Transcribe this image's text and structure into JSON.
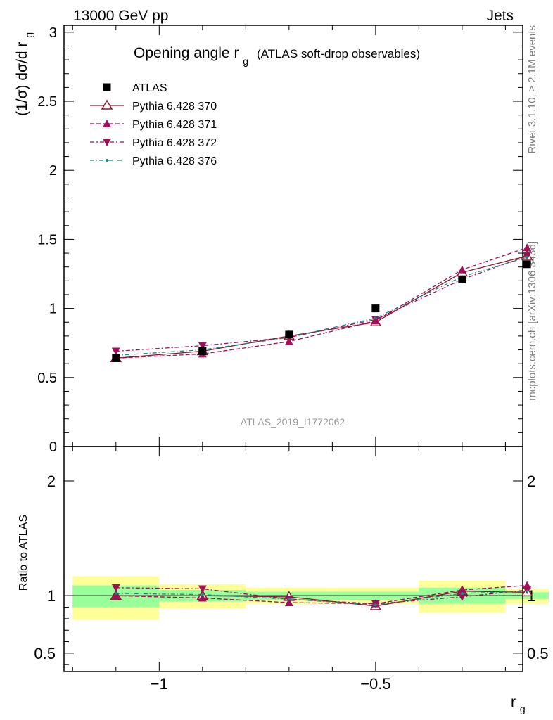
{
  "header": {
    "left": "13000 GeV pp",
    "right": "Jets"
  },
  "title": {
    "main": "Opening angle r",
    "sub": "g",
    "suffix": "(ATLAS soft-drop observables)"
  },
  "watermark": "ATLAS_2019_I1772062",
  "side_labels": {
    "rivet": "Rivet 3.1.10, ≥ 2.1M events",
    "mcplots": "mcplots.cern.ch [arXiv:1306.3436]"
  },
  "colors": {
    "data": "#000000",
    "p370": "#8b1a2b",
    "p371": "#a0105a",
    "p372": "#a0105a",
    "p376": "#1a8a80",
    "band_inner": "#99ff99",
    "band_outer": "#ffff99"
  },
  "chart_data": [
    {
      "type": "line",
      "ylabel": "(1/σ) dσ/d r",
      "ylabel_sub": "g",
      "xlim": [
        -1.22,
        -0.16
      ],
      "ylim": [
        0,
        3.05
      ],
      "x_ticks": [
        -1,
        -0.5
      ],
      "y_ticks": [
        {
          "v": 0.5,
          "label": "0.5"
        },
        {
          "v": 1,
          "label": "1"
        },
        {
          "v": 1.5,
          "label": "1.5"
        },
        {
          "v": 2,
          "label": "2"
        },
        {
          "v": 2.5,
          "label": "2.5"
        },
        {
          "v": 3,
          "label": "3"
        },
        {
          "v": 0,
          "label": "0"
        }
      ],
      "legend": {
        "placement": "top-left",
        "entries": [
          {
            "name": "ATLAS",
            "key": "data"
          },
          {
            "name": "Pythia 6.428 370",
            "key": "p370"
          },
          {
            "name": "Pythia 6.428 371",
            "key": "p371"
          },
          {
            "name": "Pythia 6.428 372",
            "key": "p372"
          },
          {
            "name": "Pythia 6.428 376",
            "key": "p376"
          }
        ]
      },
      "x": [
        -1.1,
        -0.9,
        -0.7,
        -0.5,
        -0.3,
        -0.15
      ],
      "series": [
        {
          "name": "ATLAS",
          "key": "data",
          "values": [
            0.64,
            0.69,
            0.81,
            1.0,
            1.21,
            1.32
          ]
        },
        {
          "name": "Pythia 6.428 370",
          "key": "p370",
          "values": [
            0.64,
            0.69,
            0.8,
            0.9,
            1.26,
            1.38
          ]
        },
        {
          "name": "Pythia 6.428 371",
          "key": "p371",
          "values": [
            0.64,
            0.67,
            0.76,
            0.91,
            1.28,
            1.44
          ]
        },
        {
          "name": "Pythia 6.428 372",
          "key": "p372",
          "values": [
            0.69,
            0.73,
            0.79,
            0.92,
            1.21,
            1.38
          ]
        },
        {
          "name": "Pythia 6.428 376",
          "key": "p376",
          "values": [
            0.66,
            0.7,
            0.79,
            0.93,
            1.23,
            1.37
          ]
        }
      ]
    },
    {
      "type": "line",
      "ylabel": "Ratio to ATLAS",
      "xlabel": "r",
      "xlabel_sub": "g",
      "xlim": [
        -1.22,
        -0.16
      ],
      "ylim": [
        0.34,
        2.3
      ],
      "x_ticks": [
        {
          "v": -1,
          "label": "−1"
        },
        {
          "v": -0.5,
          "label": "−0.5"
        }
      ],
      "y_ticks": [
        {
          "v": 0.5,
          "label": "0.5"
        },
        {
          "v": 1,
          "label": "1"
        },
        {
          "v": 2,
          "label": "2"
        }
      ],
      "bands": [
        {
          "x0": -1.2,
          "x1": -1.0,
          "inner": [
            0.9,
            1.09
          ],
          "outer": [
            0.79,
            1.17
          ]
        },
        {
          "x0": -1.0,
          "x1": -0.8,
          "inner": [
            0.95,
            1.05
          ],
          "outer": [
            0.89,
            1.1
          ]
        },
        {
          "x0": -0.8,
          "x1": -0.6,
          "inner": [
            0.965,
            1.035
          ],
          "outer": [
            0.93,
            1.07
          ]
        },
        {
          "x0": -0.6,
          "x1": -0.4,
          "inner": [
            0.965,
            1.035
          ],
          "outer": [
            0.93,
            1.07
          ]
        },
        {
          "x0": -0.4,
          "x1": -0.2,
          "inner": [
            0.93,
            1.07
          ],
          "outer": [
            0.85,
            1.13
          ]
        },
        {
          "x0": -0.2,
          "x1": -0.1,
          "inner": [
            0.97,
            1.03
          ],
          "outer": [
            0.93,
            1.06
          ]
        }
      ],
      "x": [
        -1.1,
        -0.9,
        -0.7,
        -0.5,
        -0.3,
        -0.15
      ],
      "series": [
        {
          "name": "Pythia 6.428 370",
          "key": "p370",
          "values": [
            1.0,
            1.0,
            0.99,
            0.91,
            1.04,
            1.03
          ]
        },
        {
          "name": "Pythia 6.428 371",
          "key": "p371",
          "values": [
            1.0,
            0.98,
            0.94,
            0.93,
            1.05,
            1.09
          ]
        },
        {
          "name": "Pythia 6.428 372",
          "key": "p372",
          "values": [
            1.07,
            1.06,
            0.97,
            0.93,
            0.99,
            1.05
          ]
        },
        {
          "name": "Pythia 6.428 376",
          "key": "p376",
          "values": [
            1.02,
            1.01,
            0.97,
            0.92,
            1.02,
            1.04
          ]
        }
      ]
    }
  ]
}
